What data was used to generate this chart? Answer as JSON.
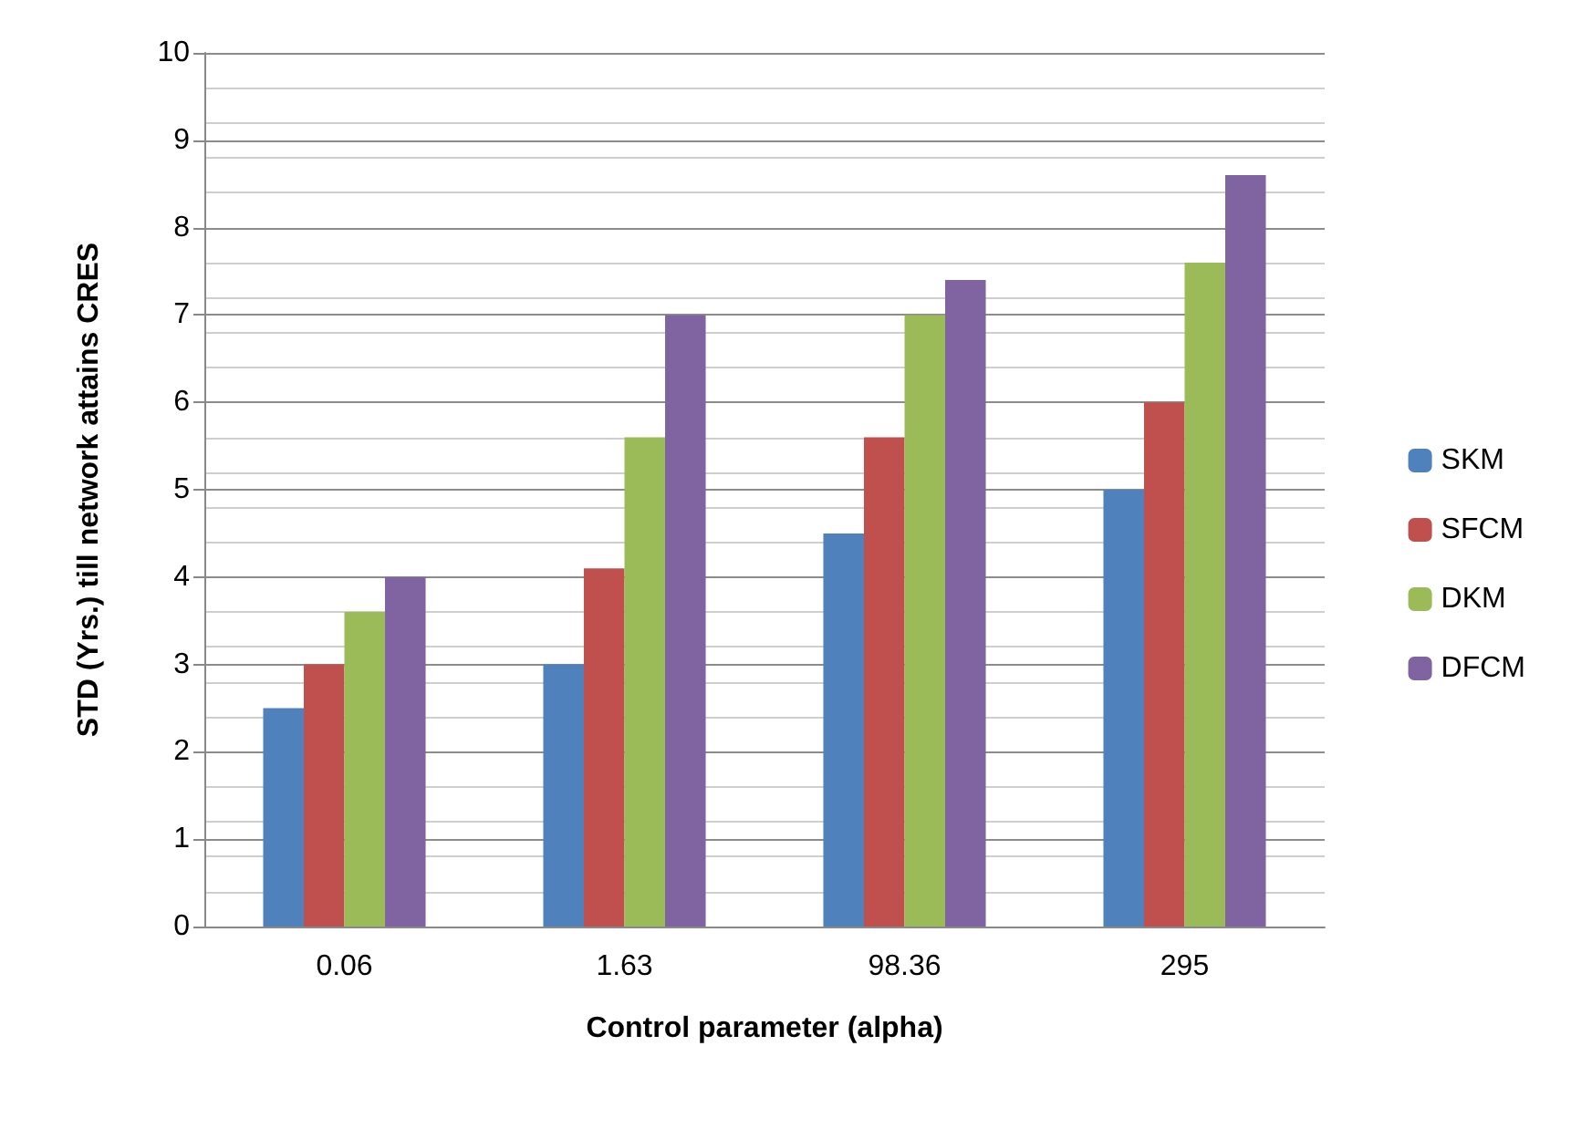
{
  "chart_data": {
    "type": "bar",
    "xlabel": "Control parameter (alpha)",
    "ylabel": "STD (Yrs.) till network attains CRES",
    "categories": [
      "0.06",
      "1.63",
      "98.36",
      "295"
    ],
    "series": [
      {
        "name": "SKM",
        "color": "#4f81bd",
        "values": [
          2.5,
          3,
          4.5,
          5
        ]
      },
      {
        "name": "SFCM",
        "color": "#c0504d",
        "values": [
          3,
          4.1,
          5.6,
          6
        ]
      },
      {
        "name": "DKM",
        "color": "#9bbb59",
        "values": [
          3.6,
          5.6,
          7,
          7.6
        ]
      },
      {
        "name": "DFCM",
        "color": "#8064a2",
        "values": [
          4,
          7,
          7.4,
          8.6
        ]
      }
    ],
    "ylim": [
      0,
      10
    ],
    "yticks": [
      0,
      1,
      2,
      3,
      4,
      5,
      6,
      7,
      8,
      9,
      10
    ],
    "grid": "y",
    "legend": "right"
  }
}
